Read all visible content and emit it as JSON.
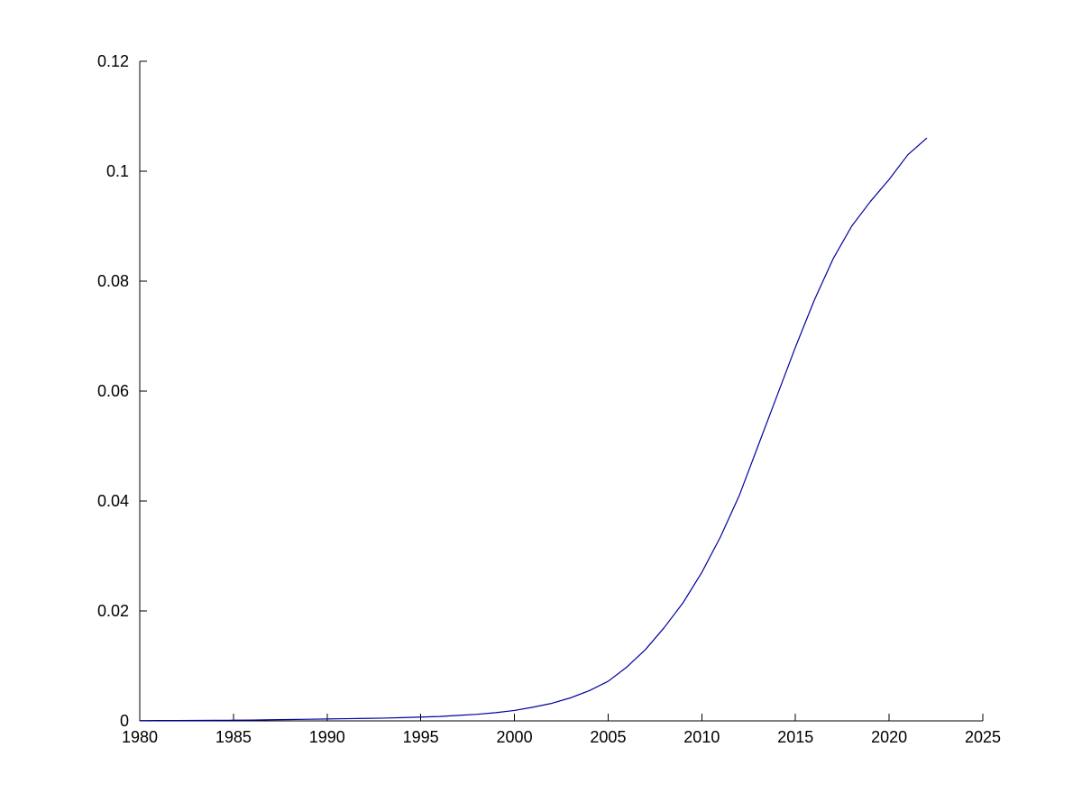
{
  "chart_data": {
    "type": "line",
    "title": "",
    "xlabel": "",
    "ylabel": "",
    "xlim": [
      1980,
      2025
    ],
    "ylim": [
      0,
      0.12
    ],
    "grid": false,
    "legend_position": "none",
    "background_color": "#ffffff",
    "axis_color": "#000000",
    "line_color": "#0000a0",
    "x_ticks": [
      1980,
      1985,
      1990,
      1995,
      2000,
      2005,
      2010,
      2015,
      2020,
      2025
    ],
    "x_tick_labels": [
      "1980",
      "1985",
      "1990",
      "1995",
      "2000",
      "2005",
      "2010",
      "2015",
      "2020",
      "2025"
    ],
    "y_ticks": [
      0,
      0.02,
      0.04,
      0.06,
      0.08,
      0.1,
      0.12
    ],
    "y_tick_labels": [
      "0",
      "0.02",
      "0.04",
      "0.06",
      "0.08",
      "0.1",
      "0.12"
    ],
    "series": [
      {
        "name": "series-1",
        "x": [
          1980,
          1981,
          1982,
          1983,
          1984,
          1985,
          1986,
          1987,
          1988,
          1989,
          1990,
          1991,
          1992,
          1993,
          1994,
          1995,
          1996,
          1997,
          1998,
          1999,
          2000,
          2001,
          2002,
          2003,
          2004,
          2005,
          2006,
          2007,
          2008,
          2009,
          2010,
          2011,
          2012,
          2013,
          2014,
          2015,
          2016,
          2017,
          2018,
          2019,
          2020,
          2021,
          2022
        ],
        "y": [
          5e-05,
          6e-05,
          7e-05,
          8e-05,
          0.0001,
          0.00012,
          0.00015,
          0.0002,
          0.00025,
          0.0003,
          0.00035,
          0.0004,
          0.00045,
          0.0005,
          0.0006,
          0.0007,
          0.0008,
          0.001,
          0.0012,
          0.0015,
          0.0019,
          0.0025,
          0.0032,
          0.0042,
          0.0055,
          0.0072,
          0.0098,
          0.013,
          0.017,
          0.0215,
          0.027,
          0.0335,
          0.041,
          0.05,
          0.059,
          0.068,
          0.0765,
          0.084,
          0.09,
          0.0945,
          0.0985,
          0.103,
          0.106
        ]
      }
    ]
  }
}
